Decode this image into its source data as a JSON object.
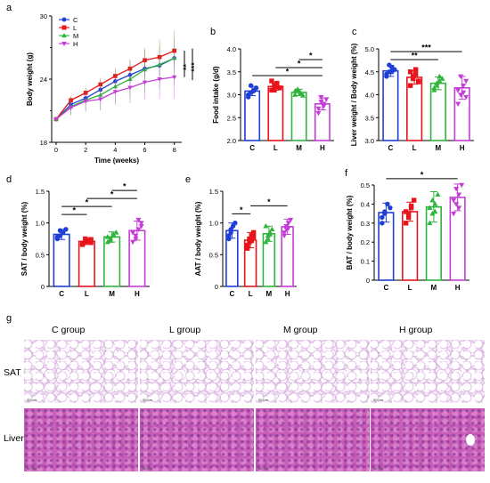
{
  "colors": {
    "C": "#1f3fd6",
    "L": "#e8141b",
    "M": "#2fb53d",
    "H": "#c43ed6"
  },
  "panel_letters": {
    "a": "a",
    "b": "b",
    "c": "c",
    "d": "d",
    "e": "e",
    "f": "f",
    "g": "g"
  },
  "chart_data": [
    {
      "panel": "a",
      "type": "line",
      "xlabel": "Time (weeks)",
      "ylabel": "Body weight (g)",
      "x": [
        0,
        1,
        2,
        3,
        4,
        5,
        6,
        7,
        8
      ],
      "xticks": [
        "0",
        "2",
        "4",
        "6",
        "8"
      ],
      "yticks": [
        "18",
        "24",
        "30"
      ],
      "ylim": [
        18,
        30
      ],
      "xlim": [
        -0.3,
        8.5
      ],
      "legend": [
        "C",
        "L",
        "M",
        "H"
      ],
      "series": [
        {
          "name": "C",
          "values": [
            20.2,
            21.6,
            22.2,
            23.0,
            23.8,
            24.4,
            25.0,
            25.3,
            26.0
          ]
        },
        {
          "name": "L",
          "values": [
            20.2,
            22.0,
            22.7,
            23.5,
            24.3,
            25.0,
            25.8,
            26.1,
            26.7
          ]
        },
        {
          "name": "M",
          "values": [
            20.2,
            21.4,
            22.0,
            22.5,
            23.3,
            24.0,
            24.9,
            25.4,
            26.0
          ]
        },
        {
          "name": "H",
          "values": [
            20.2,
            21.3,
            21.9,
            22.1,
            22.8,
            23.2,
            23.7,
            24.0,
            24.2
          ]
        }
      ],
      "errors": {
        "C": 0.8,
        "L": 0.9,
        "M": 2.0,
        "H": 1.6
      },
      "annotations": [
        "**",
        "***"
      ]
    },
    {
      "panel": "b",
      "type": "bar",
      "ylabel": "Food intake (g/d)",
      "categories": [
        "C",
        "L",
        "M",
        "H"
      ],
      "values": [
        3.08,
        3.18,
        3.05,
        2.8
      ],
      "errors": [
        0.1,
        0.08,
        0.07,
        0.13
      ],
      "points": [
        [
          3.0,
          3.05,
          3.1,
          3.15,
          2.95,
          3.2,
          3.08
        ],
        [
          3.1,
          3.2,
          3.25,
          3.15,
          3.3,
          3.1,
          3.18
        ],
        [
          3.0,
          3.1,
          3.05,
          2.98,
          3.08,
          3.12,
          3.02
        ],
        [
          2.7,
          2.85,
          2.75,
          2.9,
          2.6,
          2.95,
          2.8
        ]
      ],
      "ylim": [
        2.0,
        4.0
      ],
      "yticks": [
        "2.0",
        "2.5",
        "3.0",
        "3.5",
        "4.0"
      ],
      "sig": [
        {
          "from": 0,
          "to": 3,
          "label": "*"
        },
        {
          "from": 1,
          "to": 3,
          "label": "*"
        },
        {
          "from": 2,
          "to": 3,
          "label": "*"
        }
      ]
    },
    {
      "panel": "c",
      "type": "bar",
      "ylabel": "Liver weight / Body weight (%)",
      "categories": [
        "C",
        "L",
        "M",
        "H"
      ],
      "values": [
        4.52,
        4.38,
        4.25,
        4.15
      ],
      "errors": [
        0.12,
        0.15,
        0.14,
        0.25
      ],
      "points": [
        [
          4.4,
          4.5,
          4.6,
          4.55,
          4.45,
          4.65,
          4.5
        ],
        [
          4.2,
          4.35,
          4.45,
          4.3,
          4.5,
          4.4,
          4.55,
          4.28
        ],
        [
          4.1,
          4.2,
          4.3,
          4.35,
          4.15,
          4.25,
          4.4
        ],
        [
          3.8,
          4.0,
          4.2,
          4.3,
          4.1,
          4.4,
          4.05,
          3.95
        ]
      ],
      "ylim": [
        3.0,
        5.0
      ],
      "yticks": [
        "3.0",
        "3.5",
        "4.0",
        "4.5",
        "5.0"
      ],
      "sig": [
        {
          "from": 0,
          "to": 2,
          "label": "**"
        },
        {
          "from": 0,
          "to": 3,
          "label": "***"
        }
      ]
    },
    {
      "panel": "d",
      "type": "bar",
      "ylabel": "SAT / body weight (%)",
      "categories": [
        "C",
        "L",
        "M",
        "H"
      ],
      "values": [
        0.82,
        0.71,
        0.78,
        0.88
      ],
      "errors": [
        0.08,
        0.05,
        0.08,
        0.15
      ],
      "points": [
        [
          0.75,
          0.8,
          0.85,
          0.9,
          0.78,
          0.88
        ],
        [
          0.68,
          0.7,
          0.72,
          0.74,
          0.66,
          0.75,
          0.71,
          0.69
        ],
        [
          0.7,
          0.75,
          0.8,
          0.85,
          0.78,
          0.72,
          0.82
        ],
        [
          0.7,
          0.8,
          0.9,
          1.0,
          0.85,
          0.75,
          1.05,
          0.95
        ]
      ],
      "ylim": [
        0,
        1.5
      ],
      "yticks": [
        "0",
        "0.5",
        "1.0",
        "1.5"
      ],
      "sig": [
        {
          "from": 0,
          "to": 1,
          "label": "*"
        },
        {
          "from": 0,
          "to": 2,
          "label": "*"
        },
        {
          "from": 1,
          "to": 3,
          "label": "*"
        },
        {
          "from": 2,
          "to": 3,
          "label": "*"
        }
      ]
    },
    {
      "panel": "e",
      "type": "bar",
      "ylabel": "AAT / body weight (%)",
      "categories": [
        "C",
        "L",
        "M",
        "H"
      ],
      "values": [
        0.88,
        0.73,
        0.83,
        0.94
      ],
      "errors": [
        0.12,
        0.12,
        0.12,
        0.12
      ],
      "points": [
        [
          0.75,
          0.85,
          0.95,
          1.0,
          0.8,
          0.9
        ],
        [
          0.6,
          0.7,
          0.8,
          0.85,
          0.65,
          0.75,
          0.72,
          0.78
        ],
        [
          0.7,
          0.8,
          0.85,
          0.9,
          0.95,
          0.75,
          0.82
        ],
        [
          0.8,
          0.9,
          1.0,
          1.05,
          0.85,
          0.95,
          0.92
        ]
      ],
      "ylim": [
        0,
        1.5
      ],
      "yticks": [
        "0",
        "0.5",
        "1.0",
        "1.5"
      ],
      "sig": [
        {
          "from": 0,
          "to": 1,
          "label": "*"
        },
        {
          "from": 1,
          "to": 3,
          "label": "*"
        }
      ]
    },
    {
      "panel": "f",
      "type": "bar",
      "ylabel": "BAT / body weight (%)",
      "categories": [
        "C",
        "L",
        "M",
        "H"
      ],
      "values": [
        0.355,
        0.36,
        0.385,
        0.435
      ],
      "errors": [
        0.05,
        0.05,
        0.08,
        0.07
      ],
      "points": [
        [
          0.3,
          0.35,
          0.4,
          0.38,
          0.33,
          0.36
        ],
        [
          0.3,
          0.33,
          0.38,
          0.42,
          0.36,
          0.35,
          0.39
        ],
        [
          0.3,
          0.35,
          0.4,
          0.45,
          0.38,
          0.42,
          0.36
        ],
        [
          0.35,
          0.4,
          0.45,
          0.5,
          0.42,
          0.48,
          0.38
        ]
      ],
      "ylim": [
        0,
        0.5
      ],
      "yticks": [
        "0",
        "0.1",
        "0.2",
        "0.3",
        "0.4",
        "0.5"
      ],
      "sig": [
        {
          "from": 0,
          "to": 3,
          "label": "*"
        }
      ]
    }
  ],
  "histology": {
    "groups": [
      "C group",
      "L group",
      "M group",
      "H group"
    ],
    "rows": [
      "SAT",
      "Liver"
    ],
    "scale": "50 μm"
  }
}
